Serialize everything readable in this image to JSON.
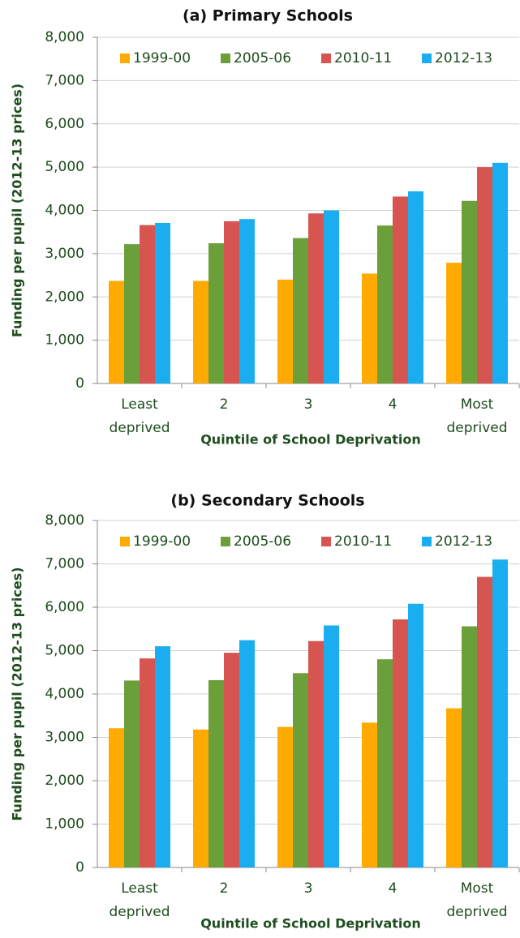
{
  "chart_data": [
    {
      "type": "bar",
      "title": "(a) Primary Schools",
      "x_label": "Quintile of School Deprivation",
      "y_label": "Funding per pupil (2012-13 prices)",
      "categories": [
        "Least deprived",
        "2",
        "3",
        "4",
        "Most deprived"
      ],
      "series": [
        {
          "name": "1999-00",
          "color": "#ffaa00",
          "values": [
            2370,
            2370,
            2400,
            2540,
            2790
          ]
        },
        {
          "name": "2005-06",
          "color": "#6b9f3a",
          "values": [
            3220,
            3240,
            3360,
            3650,
            4220
          ]
        },
        {
          "name": "2010-11",
          "color": "#d65550",
          "values": [
            3660,
            3750,
            3930,
            4320,
            5000
          ]
        },
        {
          "name": "2012-13",
          "color": "#1aaef0",
          "values": [
            3710,
            3800,
            4000,
            4440,
            5100
          ]
        }
      ],
      "ylim": [
        0,
        8000
      ],
      "yticks": [
        0,
        {
          "value": 1000,
          "label": "1,000"
        },
        {
          "value": 2000,
          "label": "2,000"
        },
        {
          "value": 3000,
          "label": "3,000"
        },
        {
          "value": 4000,
          "label": "4,000"
        },
        {
          "value": 5000,
          "label": "5,000"
        },
        {
          "value": 6000,
          "label": "6,000"
        },
        {
          "value": 7000,
          "label": "7,000"
        },
        {
          "value": 8000,
          "label": "8,000"
        }
      ],
      "grid": true,
      "legend": "top"
    },
    {
      "type": "bar",
      "title": "(b) Secondary Schools",
      "x_label": "Quintile of School Deprivation",
      "y_label": "Funding per pupil (2012-13 prices)",
      "categories": [
        "Least deprived",
        "2",
        "3",
        "4",
        "Most deprived"
      ],
      "series": [
        {
          "name": "1999-00",
          "color": "#ffaa00",
          "values": [
            3210,
            3180,
            3240,
            3340,
            3670
          ]
        },
        {
          "name": "2005-06",
          "color": "#6b9f3a",
          "values": [
            4310,
            4320,
            4480,
            4800,
            5560
          ]
        },
        {
          "name": "2010-11",
          "color": "#d65550",
          "values": [
            4820,
            4950,
            5220,
            5720,
            6700
          ]
        },
        {
          "name": "2012-13",
          "color": "#1aaef0",
          "values": [
            5100,
            5240,
            5580,
            6080,
            7100
          ]
        }
      ],
      "ylim": [
        0,
        8000
      ],
      "yticks": [
        0,
        {
          "value": 1000,
          "label": "1,000"
        },
        {
          "value": 2000,
          "label": "2,000"
        },
        {
          "value": 3000,
          "label": "3,000"
        },
        {
          "value": 4000,
          "label": "4,000"
        },
        {
          "value": 5000,
          "label": "5,000"
        },
        {
          "value": 6000,
          "label": "6,000"
        },
        {
          "value": 7000,
          "label": "7,000"
        },
        {
          "value": 8000,
          "label": "8,000"
        }
      ],
      "grid": true,
      "legend": "top"
    }
  ]
}
